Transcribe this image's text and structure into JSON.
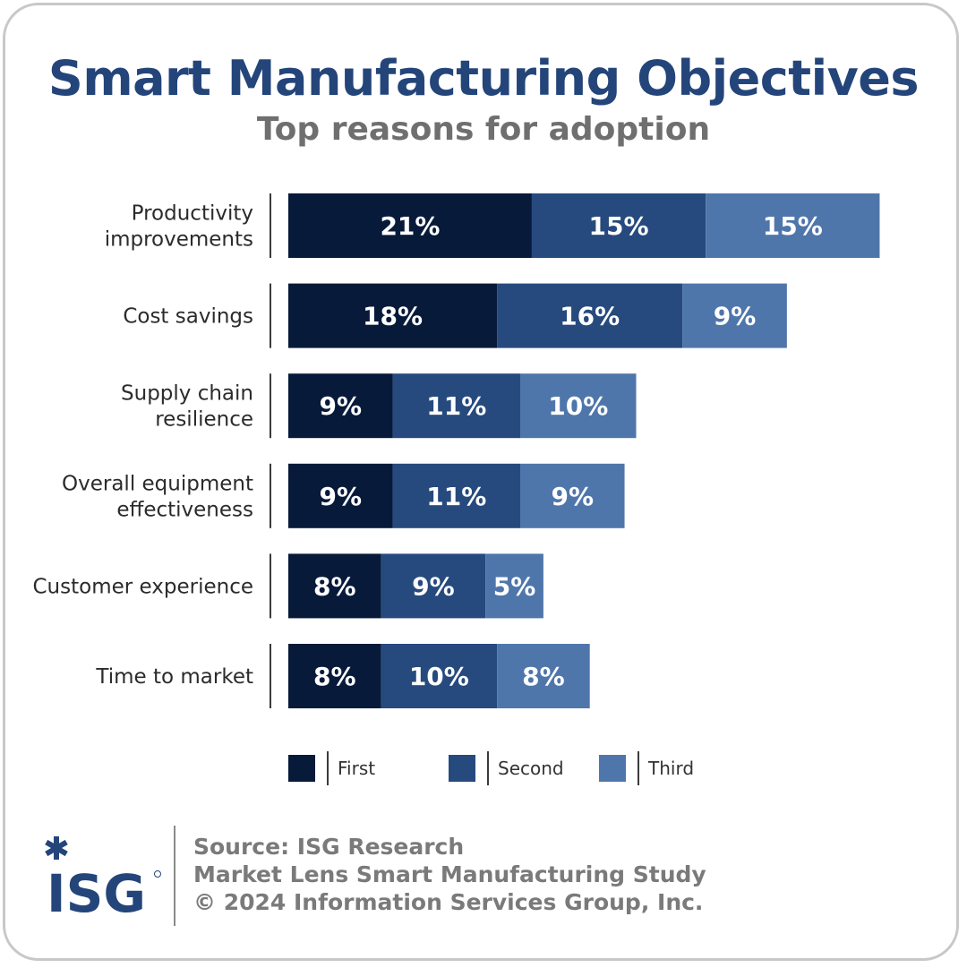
{
  "title": "Smart Manufacturing Objectives",
  "subtitle": "Top reasons for adoption",
  "colors": {
    "first": "#081a3a",
    "second": "#264a7d",
    "third": "#4f76ab",
    "title": "#24457a"
  },
  "chart_data": {
    "type": "bar",
    "orientation": "horizontal",
    "stacked": true,
    "categories": [
      [
        "Productivity",
        "improvements"
      ],
      [
        "Cost savings"
      ],
      [
        "Supply chain",
        "resilience"
      ],
      [
        "Overall equipment",
        "effectiveness"
      ],
      [
        "Customer experience"
      ],
      [
        "Time to market"
      ]
    ],
    "series": [
      {
        "name": "First",
        "values": [
          21,
          18,
          9,
          9,
          8,
          8
        ],
        "labels": [
          "21%",
          "18%",
          "9%",
          "9%",
          "8%",
          "8%"
        ]
      },
      {
        "name": "Second",
        "values": [
          15,
          16,
          11,
          11,
          9,
          10
        ],
        "labels": [
          "15%",
          "16%",
          "11%",
          "11%",
          "9%",
          "10%"
        ]
      },
      {
        "name": "Third",
        "values": [
          15,
          9,
          10,
          9,
          5,
          8
        ],
        "labels": [
          "15%",
          "9%",
          "10%",
          "9%",
          "5%",
          "8%"
        ]
      }
    ],
    "legend_position": "bottom",
    "grid": false
  },
  "footer": {
    "logo_text": "ISG",
    "source_line1": "Source: ISG Research",
    "source_line2": "Market Lens Smart Manufacturing Study",
    "source_line3": "© 2024 Information Services Group, Inc."
  }
}
